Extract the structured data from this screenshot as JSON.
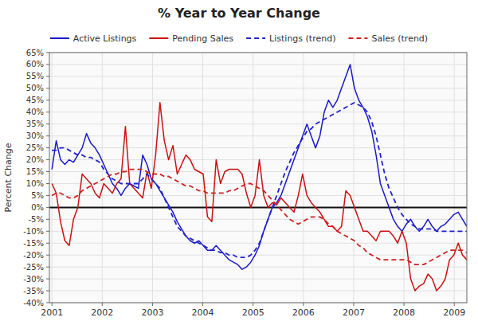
{
  "chart_data": {
    "type": "line",
    "title": "% Year to Year Change",
    "ylabel": "Percent Change",
    "x": [
      2001,
      2001.0859375,
      2001.171875,
      2001.2578125,
      2001.34375,
      2001.4296875,
      2001.515625,
      2001.6015625,
      2001.6875,
      2001.7734375,
      2001.859375,
      2001.9453125,
      2002.03125,
      2002.1171875,
      2002.203125,
      2002.2890625,
      2002.375,
      2002.4609375,
      2002.546875,
      2002.6328125,
      2002.71875,
      2002.8046875,
      2002.890625,
      2002.9765625,
      2003.0625,
      2003.1484375,
      2003.234375,
      2003.3203125,
      2003.40625,
      2003.4921875,
      2003.578125,
      2003.6640625,
      2003.75,
      2003.8359375,
      2003.921875,
      2004.0078125,
      2004.09375,
      2004.1796875,
      2004.265625,
      2004.3515625,
      2004.4375,
      2004.5234375,
      2004.609375,
      2004.6953125,
      2004.78125,
      2004.8671875,
      2004.953125,
      2005.0390625,
      2005.125,
      2005.2109375,
      2005.296875,
      2005.3828125,
      2005.46875,
      2005.5546875,
      2005.640625,
      2005.7265625,
      2005.8125,
      2005.8984375,
      2005.984375,
      2006.0703125,
      2006.15625,
      2006.2421875,
      2006.328125,
      2006.4140625,
      2006.5,
      2006.5859375,
      2006.671875,
      2006.7578125,
      2006.84375,
      2006.9296875,
      2007.015625,
      2007.1015625,
      2007.1875,
      2007.2734375,
      2007.359375,
      2007.4453125,
      2007.53125,
      2007.6171875,
      2007.703125,
      2007.7890625,
      2007.875,
      2007.9609375,
      2008.046875,
      2008.1328125,
      2008.21875,
      2008.3046875,
      2008.390625,
      2008.4765625,
      2008.5625,
      2008.6484375,
      2008.734375,
      2008.8203125,
      2008.90625,
      2008.9921875,
      2009.078125,
      2009.1640625,
      2009.25
    ],
    "series": [
      {
        "name": "Active Listings",
        "color": "#1a1acc",
        "line_style": "solid",
        "values": [
          0.16,
          0.28,
          0.2,
          0.18,
          0.2,
          0.19,
          0.22,
          0.25,
          0.31,
          0.27,
          0.25,
          0.22,
          0.18,
          0.14,
          0.1,
          0.08,
          0.05,
          0.08,
          0.1,
          0.09,
          0.08,
          0.22,
          0.18,
          0.12,
          0.1,
          0.07,
          0.04,
          0.01,
          -0.02,
          -0.06,
          -0.09,
          -0.12,
          -0.14,
          -0.15,
          -0.14,
          -0.16,
          -0.18,
          -0.18,
          -0.16,
          -0.18,
          -0.2,
          -0.22,
          -0.23,
          -0.24,
          -0.26,
          -0.25,
          -0.23,
          -0.2,
          -0.16,
          -0.1,
          -0.05,
          0.0,
          0.02,
          0.05,
          0.1,
          0.15,
          0.2,
          0.25,
          0.3,
          0.35,
          0.3,
          0.25,
          0.3,
          0.4,
          0.45,
          0.42,
          0.45,
          0.5,
          0.55,
          0.6,
          0.5,
          0.45,
          0.42,
          0.38,
          0.32,
          0.22,
          0.1,
          0.05,
          0.0,
          -0.05,
          -0.08,
          -0.1,
          -0.07,
          -0.05,
          -0.08,
          -0.1,
          -0.08,
          -0.05,
          -0.08,
          -0.1,
          -0.08,
          -0.07,
          -0.05,
          -0.03,
          -0.02,
          -0.05,
          -0.08
        ]
      },
      {
        "name": "Pending Sales",
        "color": "#cc1111",
        "line_style": "solid",
        "values": [
          0.1,
          0.06,
          -0.06,
          -0.14,
          -0.16,
          -0.05,
          0.0,
          0.14,
          0.12,
          0.1,
          0.06,
          0.04,
          0.1,
          0.08,
          0.06,
          0.1,
          0.12,
          0.34,
          0.1,
          0.08,
          0.06,
          0.04,
          0.15,
          0.08,
          0.22,
          0.44,
          0.28,
          0.2,
          0.26,
          0.14,
          0.18,
          0.22,
          0.2,
          0.16,
          0.15,
          0.14,
          -0.04,
          -0.06,
          0.2,
          0.1,
          0.15,
          0.16,
          0.16,
          0.16,
          0.14,
          0.06,
          0.0,
          0.05,
          0.2,
          0.05,
          0.0,
          0.02,
          0.01,
          0.04,
          0.02,
          0.0,
          -0.02,
          0.05,
          0.14,
          0.05,
          0.02,
          0.0,
          -0.02,
          -0.05,
          -0.08,
          -0.08,
          -0.1,
          -0.08,
          0.07,
          0.05,
          0.0,
          -0.05,
          -0.1,
          -0.1,
          -0.12,
          -0.14,
          -0.1,
          -0.1,
          -0.1,
          -0.12,
          -0.15,
          -0.1,
          -0.15,
          -0.3,
          -0.35,
          -0.33,
          -0.32,
          -0.28,
          -0.3,
          -0.35,
          -0.33,
          -0.3,
          -0.22,
          -0.2,
          -0.15,
          -0.2,
          -0.22
        ]
      },
      {
        "name": "Listings (trend)",
        "color": "#2222cc",
        "line_style": "dashed",
        "values": [
          0.24,
          0.24,
          0.25,
          0.25,
          0.24,
          0.23,
          0.22,
          0.22,
          0.21,
          0.21,
          0.2,
          0.19,
          0.16,
          0.14,
          0.12,
          0.11,
          0.1,
          0.1,
          0.1,
          0.1,
          0.1,
          0.12,
          0.14,
          0.12,
          0.1,
          0.08,
          0.04,
          0.0,
          -0.04,
          -0.08,
          -0.1,
          -0.12,
          -0.13,
          -0.14,
          -0.15,
          -0.16,
          -0.17,
          -0.18,
          -0.18,
          -0.19,
          -0.19,
          -0.2,
          -0.2,
          -0.21,
          -0.21,
          -0.21,
          -0.2,
          -0.18,
          -0.15,
          -0.1,
          -0.05,
          0.0,
          0.05,
          0.1,
          0.15,
          0.19,
          0.23,
          0.26,
          0.29,
          0.32,
          0.33,
          0.35,
          0.36,
          0.37,
          0.38,
          0.39,
          0.4,
          0.41,
          0.42,
          0.43,
          0.44,
          0.43,
          0.42,
          0.4,
          0.36,
          0.3,
          0.22,
          0.14,
          0.08,
          0.04,
          0.0,
          -0.03,
          -0.05,
          -0.07,
          -0.08,
          -0.09,
          -0.09,
          -0.09,
          -0.09,
          -0.1,
          -0.1,
          -0.1,
          -0.1,
          -0.1,
          -0.1,
          -0.1,
          -0.1
        ]
      },
      {
        "name": "Sales (trend)",
        "color": "#cc2222",
        "line_style": "dashed",
        "values": [
          0.05,
          0.06,
          0.06,
          0.05,
          0.04,
          0.04,
          0.05,
          0.07,
          0.08,
          0.09,
          0.1,
          0.11,
          0.12,
          0.13,
          0.14,
          0.14,
          0.15,
          0.15,
          0.16,
          0.16,
          0.16,
          0.16,
          0.15,
          0.14,
          0.14,
          0.14,
          0.13,
          0.13,
          0.12,
          0.11,
          0.1,
          0.09,
          0.09,
          0.08,
          0.07,
          0.07,
          0.06,
          0.06,
          0.06,
          0.06,
          0.06,
          0.07,
          0.07,
          0.08,
          0.09,
          0.1,
          0.1,
          0.09,
          0.08,
          0.07,
          0.05,
          0.03,
          0.01,
          -0.01,
          -0.03,
          -0.05,
          -0.06,
          -0.07,
          -0.06,
          -0.05,
          -0.04,
          -0.04,
          -0.04,
          -0.05,
          -0.07,
          -0.08,
          -0.1,
          -0.11,
          -0.12,
          -0.13,
          -0.14,
          -0.16,
          -0.17,
          -0.19,
          -0.2,
          -0.21,
          -0.22,
          -0.22,
          -0.22,
          -0.22,
          -0.22,
          -0.22,
          -0.22,
          -0.23,
          -0.24,
          -0.24,
          -0.24,
          -0.23,
          -0.22,
          -0.21,
          -0.2,
          -0.19,
          -0.18,
          -0.18,
          -0.18,
          -0.18,
          -0.19
        ]
      }
    ],
    "xlim": [
      2000.95,
      2009.25
    ],
    "xticks": [
      2001,
      2002,
      2003,
      2004,
      2005,
      2006,
      2007,
      2008,
      2009
    ],
    "ylim": [
      -0.4,
      0.65
    ],
    "yticks": [
      {
        "value": -0.4,
        "label": "-40%"
      },
      {
        "value": -0.35,
        "label": "-35%"
      },
      {
        "value": -0.3,
        "label": "-30%"
      },
      {
        "value": -0.25,
        "label": "-25%"
      },
      {
        "value": -0.2,
        "label": "-20%"
      },
      {
        "value": -0.15,
        "label": "-15%"
      },
      {
        "value": -0.1,
        "label": "-10%"
      },
      {
        "value": -0.05,
        "label": "-5%"
      },
      {
        "value": 0.0,
        "label": "0%"
      },
      {
        "value": 0.05,
        "label": "5%"
      },
      {
        "value": 0.1,
        "label": "10%"
      },
      {
        "value": 0.15,
        "label": "15%"
      },
      {
        "value": 0.2,
        "label": "20%"
      },
      {
        "value": 0.25,
        "label": "25%"
      },
      {
        "value": 0.3,
        "label": "30%"
      },
      {
        "value": 0.35,
        "label": "35%"
      },
      {
        "value": 0.4,
        "label": "40%"
      },
      {
        "value": 0.45,
        "label": "45%"
      },
      {
        "value": 0.5,
        "label": "50%"
      },
      {
        "value": 0.55,
        "label": "55%"
      },
      {
        "value": 0.6,
        "label": "60%"
      },
      {
        "value": 0.65,
        "label": "65%"
      }
    ],
    "grid": true,
    "legend": "top"
  }
}
